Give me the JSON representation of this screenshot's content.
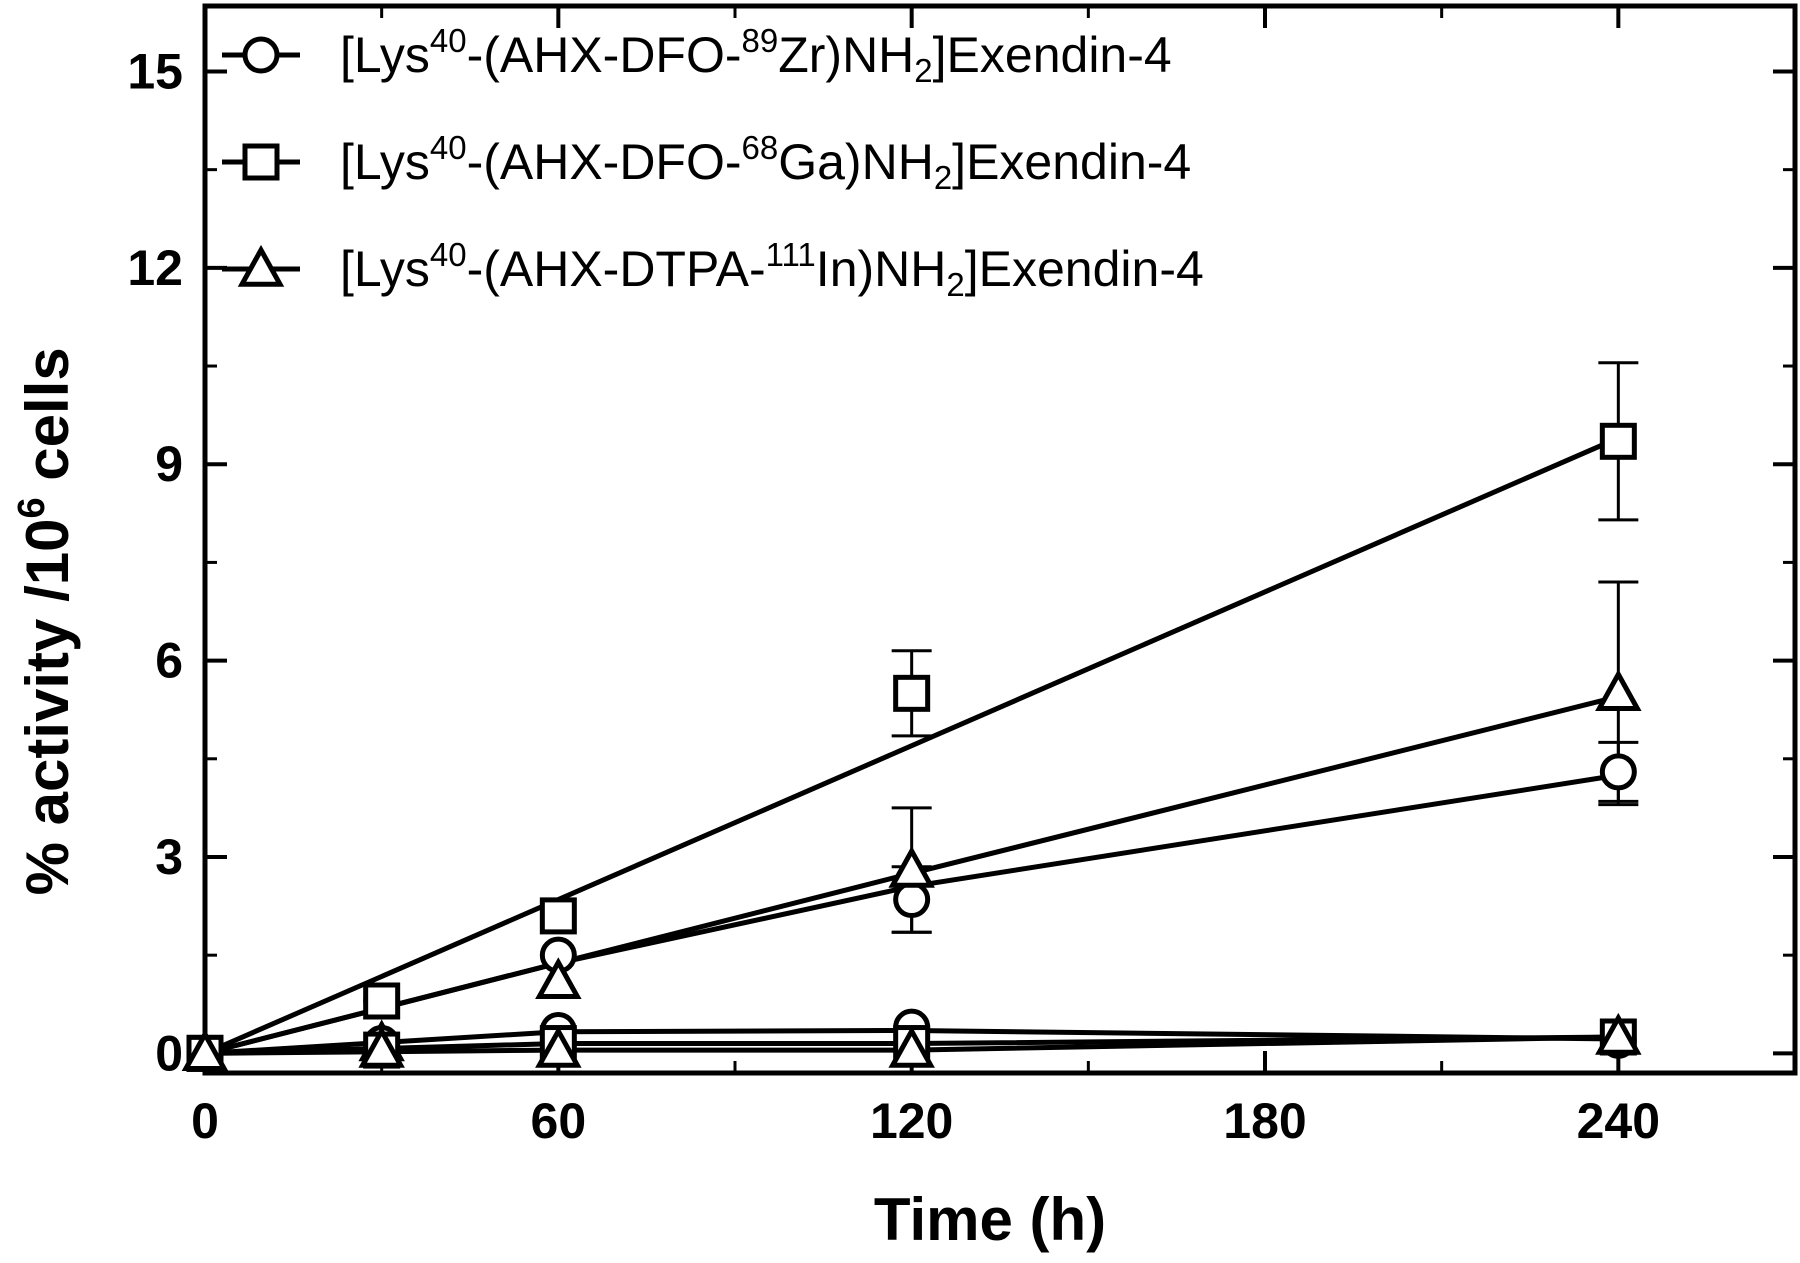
{
  "chart_data": {
    "type": "line",
    "xlabel": "Time (h)",
    "ylabel_parts": [
      "% activity /10",
      "6",
      " cells"
    ],
    "xlim": [
      0,
      270
    ],
    "ylim": [
      -0.3,
      16
    ],
    "xticks": [
      0,
      60,
      120,
      180,
      240
    ],
    "yticks": [
      0,
      3,
      6,
      9,
      12,
      15
    ],
    "legend_position": "top-left",
    "grid": false,
    "series": [
      {
        "marker": "circle",
        "label_parts": [
          "[Lys",
          "40",
          "-(AHX-DFO-",
          "89",
          "Zr)NH",
          "2",
          "]Exendin-4"
        ],
        "label_kinds": [
          "n",
          "sup",
          "n",
          "sup",
          "n",
          "sub",
          "n"
        ],
        "points": [
          {
            "x": 0,
            "y": 0,
            "err": 0
          },
          {
            "x": 30,
            "y": 0.8,
            "err": 0
          },
          {
            "x": 60,
            "y": 1.5,
            "err": 0
          },
          {
            "x": 120,
            "y": 2.35,
            "err": 0.5
          },
          {
            "x": 240,
            "y": 4.3,
            "err": 0.45
          }
        ],
        "fit_line": {
          "x": [
            0,
            60,
            120,
            240
          ],
          "y": [
            0,
            1.38,
            2.55,
            4.25
          ]
        }
      },
      {
        "marker": "square",
        "label_parts": [
          "[Lys",
          "40",
          "-(AHX-DFO-",
          "68",
          "Ga)NH",
          "2",
          "]Exendin-4"
        ],
        "label_kinds": [
          "n",
          "sup",
          "n",
          "sup",
          "n",
          "sub",
          "n"
        ],
        "points": [
          {
            "x": 0,
            "y": 0,
            "err": 0
          },
          {
            "x": 30,
            "y": 0.8,
            "err": 0
          },
          {
            "x": 60,
            "y": 2.1,
            "err": 0
          },
          {
            "x": 120,
            "y": 5.5,
            "err": 0.65
          },
          {
            "x": 240,
            "y": 9.35,
            "err": 1.2
          }
        ],
        "fit_line": {
          "x": [
            0,
            240
          ],
          "y": [
            0,
            9.4
          ]
        }
      },
      {
        "marker": "triangle",
        "label_parts": [
          "[Lys",
          "40",
          "-(AHX-DTPA-",
          "111",
          "In)NH",
          "2",
          "]Exendin-4"
        ],
        "label_kinds": [
          "n",
          "sup",
          "n",
          "sup",
          "n",
          "sub",
          "n"
        ],
        "points": [
          {
            "x": 0,
            "y": 0,
            "err": 0
          },
          {
            "x": 30,
            "y": 0.15,
            "err": 0
          },
          {
            "x": 60,
            "y": 1.1,
            "err": 0
          },
          {
            "x": 120,
            "y": 2.8,
            "err": 0.95
          },
          {
            "x": 240,
            "y": 5.5,
            "err": 1.7
          }
        ],
        "fit_line": {
          "x": [
            0,
            60,
            120,
            240
          ],
          "y": [
            0,
            1.38,
            2.75,
            5.45
          ]
        }
      },
      {
        "marker": "circle",
        "legend": false,
        "points": [
          {
            "x": 0,
            "y": 0,
            "err": 0
          },
          {
            "x": 30,
            "y": 0.15,
            "err": 0
          },
          {
            "x": 60,
            "y": 0.35,
            "err": 0
          },
          {
            "x": 120,
            "y": 0.4,
            "err": 0
          },
          {
            "x": 240,
            "y": 0.2,
            "err": 0
          }
        ],
        "fit_line": {
          "x": [
            0,
            60,
            120,
            240
          ],
          "y": [
            0,
            0.33,
            0.35,
            0.22
          ]
        }
      },
      {
        "marker": "square",
        "legend": false,
        "points": [
          {
            "x": 0,
            "y": 0,
            "err": 0
          },
          {
            "x": 30,
            "y": 0.05,
            "err": 0
          },
          {
            "x": 60,
            "y": 0.15,
            "err": 0
          },
          {
            "x": 120,
            "y": 0.15,
            "err": 0
          },
          {
            "x": 240,
            "y": 0.25,
            "err": 0
          }
        ],
        "fit_line": {
          "x": [
            0,
            60,
            120,
            240
          ],
          "y": [
            0,
            0.15,
            0.15,
            0.25
          ]
        }
      },
      {
        "marker": "triangle",
        "legend": false,
        "points": [
          {
            "x": 0,
            "y": 0,
            "err": 0
          },
          {
            "x": 30,
            "y": 0.05,
            "err": 0
          },
          {
            "x": 60,
            "y": 0.05,
            "err": 0
          },
          {
            "x": 120,
            "y": 0.05,
            "err": 0
          },
          {
            "x": 240,
            "y": 0.25,
            "err": 0
          }
        ],
        "fit_line": {
          "x": [
            0,
            60,
            120,
            240
          ],
          "y": [
            0,
            0.05,
            0.05,
            0.25
          ]
        }
      }
    ]
  }
}
